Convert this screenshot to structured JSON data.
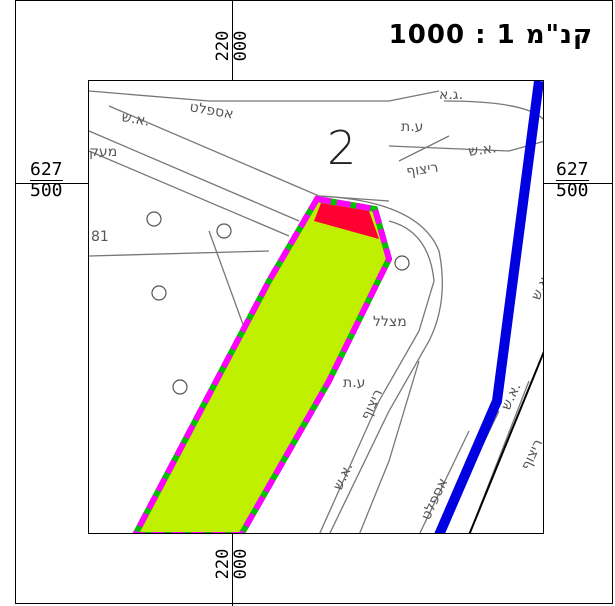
{
  "scale": {
    "label": "קנ\"מ 1 : 1000"
  },
  "grid": {
    "top_easting": [
      "220",
      "000"
    ],
    "bottom_easting": [
      "220",
      "000"
    ],
    "left_northing": [
      "627",
      "500"
    ],
    "right_northing": [
      "627",
      "500"
    ]
  },
  "map": {
    "plot_number": "2",
    "labels": {
      "asphalt_1": "אספלט",
      "as_1": "א.ש.",
      "at_1": "ע.ת",
      "as_2": "א.ש.",
      "ritzuf_1": "ריצוף",
      "maaq": "מעק",
      "num_81": "81",
      "matzlel": "מצלל",
      "at_2": "ע.ת",
      "ritzuf_2": "ריצוף",
      "as_3": "א.ש.",
      "asphalt_2": "אספלט",
      "as_4": "א.ש.",
      "as_5": "א.ש.",
      "ritzuf_3": "ריצוף",
      "ga": "ג.א."
    }
  },
  "colors": {
    "plot_fill": "#bff000",
    "plot_outline": "#ff00ff",
    "plot_dash_alt": "#00c000",
    "red_area": "#ff0033",
    "blue_line": "#0000e0",
    "base_lines": "#777777"
  }
}
